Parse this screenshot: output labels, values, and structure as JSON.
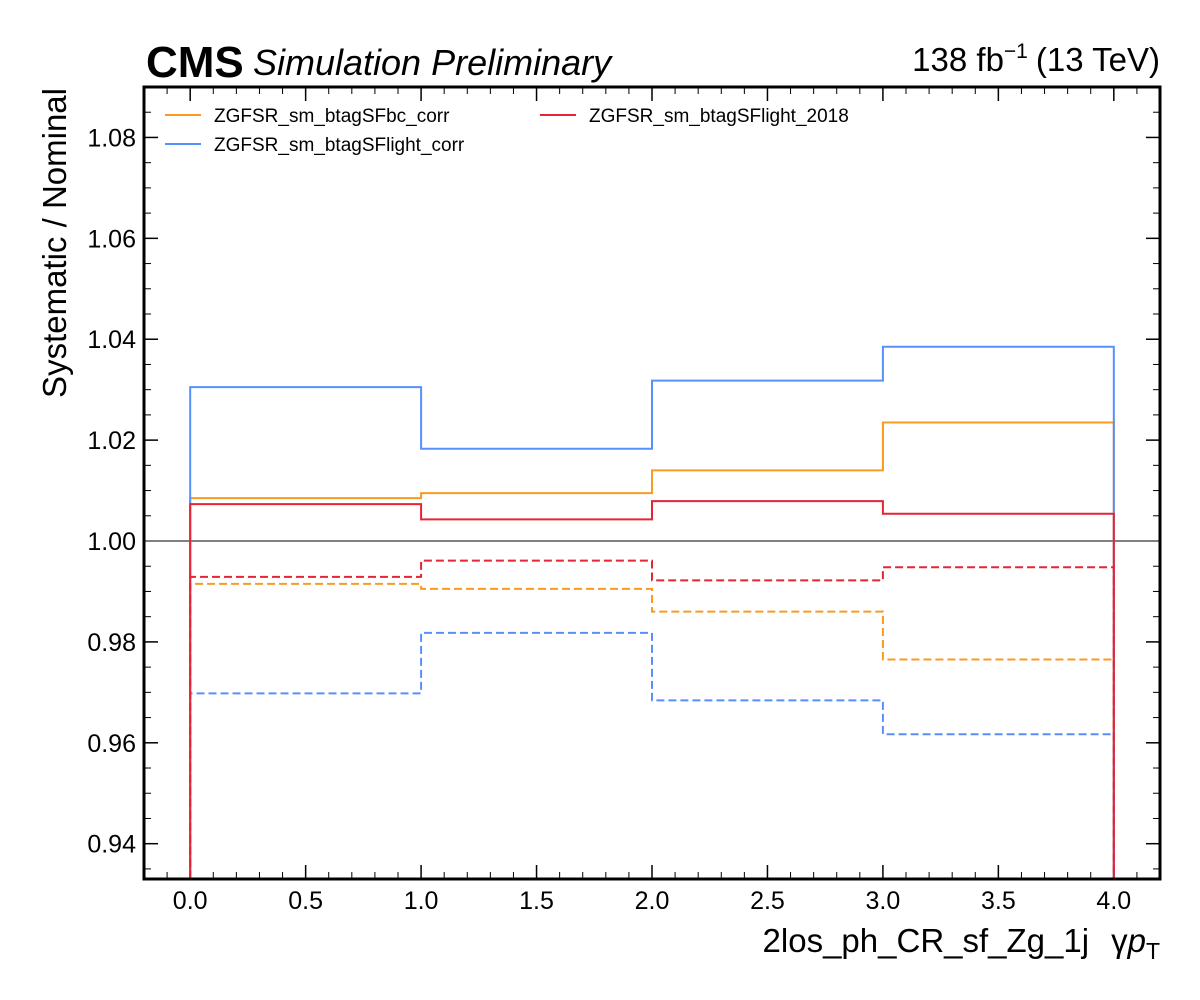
{
  "header": {
    "experiment": "CMS",
    "status": "Simulation Preliminary",
    "lumi_value": "138 fb",
    "lumi_exponent": "−1",
    "energy": "(13 TeV)"
  },
  "chart_data": {
    "type": "line",
    "step": true,
    "xlabel": "2los_ph_CR_sf_Zg_1j",
    "xlabel_var": "γ",
    "xlabel_var_italic": "p",
    "xlabel_var_sub": "T",
    "ylabel": "Systematic / Nominal",
    "xlim": [
      -0.2,
      4.2
    ],
    "ylim": [
      0.933,
      1.09
    ],
    "xticks": [
      0.0,
      0.5,
      1.0,
      1.5,
      2.0,
      2.5,
      3.0,
      3.5,
      4.0
    ],
    "xtick_labels": [
      "0.0",
      "0.5",
      "1.0",
      "1.5",
      "2.0",
      "2.5",
      "3.0",
      "3.5",
      "4.0"
    ],
    "yticks": [
      0.94,
      0.96,
      0.98,
      1.0,
      1.02,
      1.04,
      1.06,
      1.08
    ],
    "ytick_labels": [
      "0.94",
      "0.96",
      "0.98",
      "1.00",
      "1.02",
      "1.04",
      "1.06",
      "1.08"
    ],
    "bin_edges": [
      0,
      1,
      2,
      3,
      4
    ],
    "reference_line": 1.0,
    "reference_color": "#808080",
    "legend_position": "top-left",
    "series": [
      {
        "name": "ZGFSR_sm_btagSFbc_corr",
        "color": "#f89c20",
        "up": [
          1.0085,
          1.0095,
          1.014,
          1.0235
        ],
        "down": [
          0.9915,
          0.9905,
          0.986,
          0.9765
        ]
      },
      {
        "name": "ZGFSR_sm_btagSFlight_corr",
        "color": "#5790fc",
        "up": [
          1.0305,
          1.0183,
          1.0318,
          1.0385
        ],
        "down": [
          0.9698,
          0.9818,
          0.9684,
          0.9617
        ]
      },
      {
        "name": "ZGFSR_sm_btagSFlight_2018",
        "color": "#e42536",
        "up": [
          1.0073,
          1.0043,
          1.0079,
          1.0054
        ],
        "down": [
          0.9929,
          0.9961,
          0.9922,
          0.9948
        ]
      }
    ]
  }
}
